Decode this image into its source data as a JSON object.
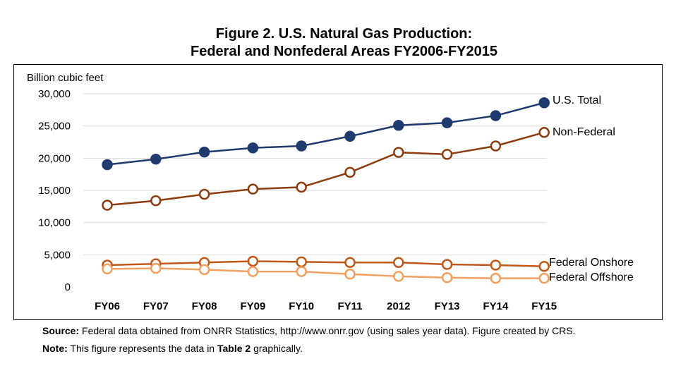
{
  "title_line1": "Figure 2. U.S. Natural Gas Production:",
  "title_line2": "Federal and Nonfederal Areas FY2006-FY2015",
  "source_label": "Source:",
  "source_text": "Federal data obtained from ONRR Statistics, http://www.onrr.gov (using sales year data). Figure created by CRS.",
  "note_label": "Note:",
  "note_text_before": "This figure represents the data in",
  "note_table": "Table 2",
  "note_text_after": "graphically.",
  "chart_data": {
    "type": "line",
    "ylabel": "Billion cubic feet",
    "xlabel": "",
    "ylim": [
      0,
      30000
    ],
    "yticks": [
      0,
      5000,
      10000,
      15000,
      20000,
      25000,
      30000
    ],
    "ytick_labels": [
      "0",
      "5,000",
      "10,000",
      "15,000",
      "20,000",
      "25,000",
      "30,000"
    ],
    "categories": [
      "FY06",
      "FY07",
      "FY08",
      "FY09",
      "FY10",
      "FY11",
      "2012",
      "FY13",
      "FY14",
      "FY15"
    ],
    "grid": true,
    "series": [
      {
        "name": "U.S. Total",
        "color": "#1f3a6e",
        "marker": "filled",
        "values": [
          19000,
          19850,
          20950,
          21600,
          21900,
          23400,
          25100,
          25500,
          26600,
          28600
        ]
      },
      {
        "name": "Non-Federal",
        "color": "#8b3d0f",
        "marker": "hollow",
        "values": [
          12700,
          13400,
          14400,
          15200,
          15500,
          17800,
          20900,
          20600,
          21900,
          24000
        ]
      },
      {
        "name": "Federal Onshore",
        "color": "#c0581a",
        "marker": "hollow",
        "values": [
          3400,
          3600,
          3800,
          4000,
          3900,
          3800,
          3800,
          3500,
          3400,
          3200
        ]
      },
      {
        "name": "Federal Offshore",
        "color": "#f0a060",
        "marker": "hollow",
        "values": [
          2800,
          2900,
          2700,
          2400,
          2400,
          2000,
          1650,
          1450,
          1350,
          1350
        ]
      }
    ]
  }
}
